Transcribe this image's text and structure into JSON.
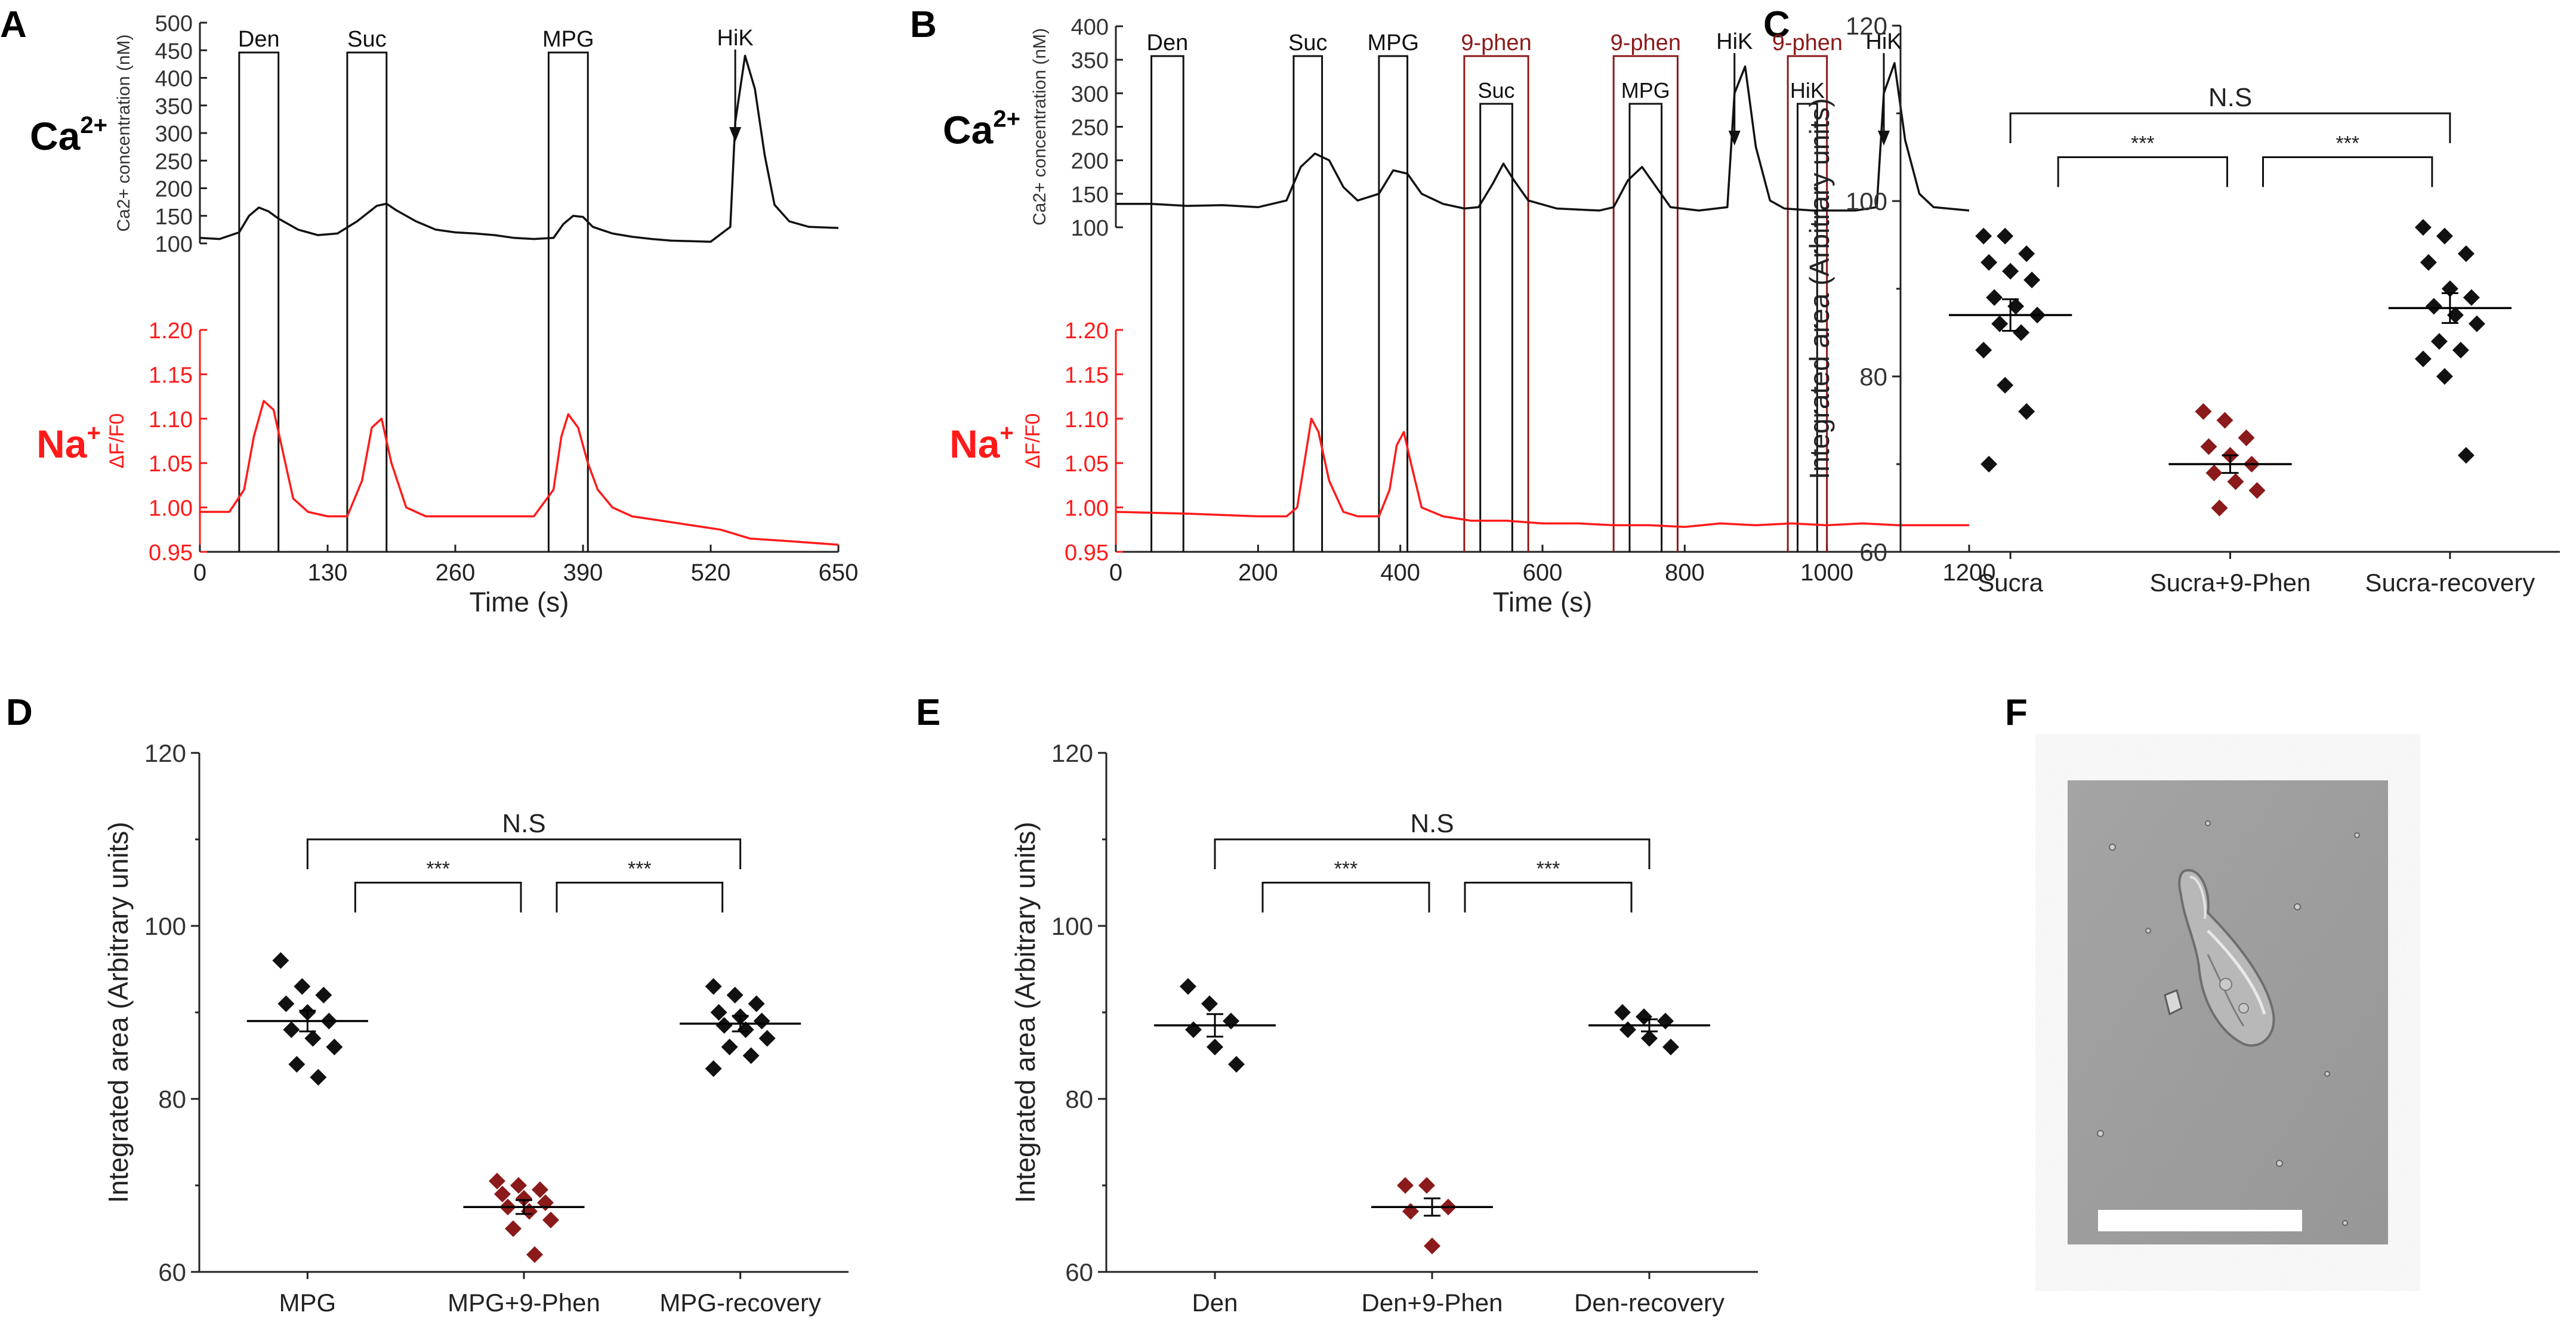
{
  "panel_letters": {
    "a": "A",
    "b": "B",
    "c": "C",
    "d": "D",
    "e": "E",
    "f": "F"
  },
  "colors": {
    "black": "#111111",
    "red": "#ff1a1a",
    "dark_red": "#8b1a1a",
    "axis": "#222222"
  },
  "chart_data": [
    {
      "id": "A",
      "type": "line",
      "xlabel": "Time (s)",
      "xticks": [
        "0",
        "130",
        "260",
        "390",
        "520",
        "650"
      ],
      "xlim": [
        0,
        650
      ],
      "series": [
        {
          "name": "Ca2+",
          "label_main": "Ca",
          "label_sup": "2+",
          "ylabel": "Ca2+ concentration (nM)",
          "yticks": [
            "100",
            "150",
            "200",
            "250",
            "300",
            "350",
            "400",
            "450",
            "500"
          ],
          "ylim": [
            100,
            500
          ],
          "x": [
            0,
            20,
            40,
            50,
            60,
            70,
            80,
            100,
            120,
            140,
            160,
            180,
            190,
            200,
            220,
            240,
            260,
            280,
            300,
            320,
            340,
            360,
            370,
            380,
            390,
            400,
            420,
            440,
            460,
            480,
            500,
            520,
            540,
            545,
            555,
            565,
            575,
            585,
            600,
            620,
            650
          ],
          "y": [
            110,
            108,
            120,
            150,
            165,
            158,
            145,
            125,
            115,
            118,
            140,
            168,
            172,
            160,
            140,
            125,
            120,
            118,
            115,
            110,
            108,
            110,
            135,
            150,
            148,
            130,
            118,
            112,
            108,
            105,
            104,
            103,
            130,
            320,
            440,
            380,
            260,
            170,
            140,
            130,
            128
          ]
        },
        {
          "name": "Na+",
          "label_main": "Na",
          "label_sup": "+",
          "ylabel": "ΔF/F0",
          "yticks": [
            "0.95",
            "1.00",
            "1.05",
            "1.10",
            "1.15",
            "1.20"
          ],
          "ylim": [
            0.95,
            1.2
          ],
          "x": [
            0,
            30,
            45,
            55,
            65,
            75,
            85,
            95,
            110,
            130,
            150,
            165,
            175,
            185,
            195,
            210,
            230,
            260,
            300,
            340,
            360,
            368,
            375,
            385,
            395,
            405,
            420,
            440,
            470,
            500,
            530,
            560,
            600,
            650
          ],
          "y": [
            0.995,
            0.995,
            1.02,
            1.08,
            1.12,
            1.11,
            1.06,
            1.01,
            0.995,
            0.99,
            0.99,
            1.03,
            1.09,
            1.1,
            1.05,
            1.0,
            0.99,
            0.99,
            0.99,
            0.99,
            1.02,
            1.08,
            1.105,
            1.09,
            1.05,
            1.02,
            1.0,
            0.99,
            0.985,
            0.98,
            0.975,
            0.965,
            0.962,
            0.958
          ]
        }
      ],
      "stimuli": [
        {
          "label": "Den",
          "start": 40,
          "end": 80
        },
        {
          "label": "Suc",
          "start": 150,
          "end": 190
        },
        {
          "label": "MPG",
          "start": 355,
          "end": 395
        }
      ],
      "annotations": [
        {
          "label": "HiK",
          "x": 545
        }
      ]
    },
    {
      "id": "B",
      "type": "line",
      "xlabel": "Time (s)",
      "xticks": [
        "0",
        "200",
        "400",
        "600",
        "800",
        "1000",
        "1200"
      ],
      "xlim": [
        0,
        1200
      ],
      "series": [
        {
          "name": "Ca2+",
          "label_main": "Ca",
          "label_sup": "2+",
          "ylabel": "Ca2+ concentration (nM)",
          "yticks": [
            "100",
            "150",
            "200",
            "250",
            "300",
            "350",
            "400"
          ],
          "ylim": [
            100,
            400
          ],
          "x": [
            0,
            50,
            100,
            150,
            200,
            240,
            260,
            280,
            300,
            320,
            340,
            370,
            390,
            410,
            430,
            460,
            490,
            510,
            530,
            545,
            560,
            580,
            620,
            680,
            700,
            720,
            740,
            760,
            780,
            820,
            860,
            870,
            885,
            900,
            920,
            940,
            980,
            1040,
            1070,
            1080,
            1095,
            1110,
            1130,
            1150,
            1200
          ],
          "y": [
            135,
            135,
            132,
            133,
            130,
            140,
            190,
            210,
            200,
            160,
            140,
            150,
            185,
            180,
            150,
            135,
            128,
            130,
            165,
            195,
            170,
            140,
            128,
            125,
            130,
            170,
            190,
            160,
            130,
            125,
            130,
            300,
            340,
            220,
            140,
            128,
            125,
            125,
            130,
            300,
            345,
            230,
            150,
            130,
            125
          ]
        },
        {
          "name": "Na+",
          "label_main": "Na",
          "label_sup": "+",
          "ylabel": "ΔF/F0",
          "yticks": [
            "0.95",
            "1.00",
            "1.05",
            "1.10",
            "1.15",
            "1.20"
          ],
          "ylim": [
            0.95,
            1.2
          ],
          "x": [
            0,
            100,
            200,
            240,
            255,
            265,
            275,
            285,
            300,
            320,
            340,
            370,
            385,
            395,
            405,
            415,
            430,
            460,
            500,
            550,
            600,
            650,
            700,
            750,
            800,
            850,
            900,
            950,
            1000,
            1050,
            1100,
            1150,
            1200
          ],
          "y": [
            0.995,
            0.993,
            0.99,
            0.99,
            1.0,
            1.05,
            1.1,
            1.085,
            1.03,
            0.995,
            0.99,
            0.99,
            1.02,
            1.07,
            1.085,
            1.05,
            1.0,
            0.99,
            0.985,
            0.985,
            0.982,
            0.982,
            0.98,
            0.98,
            0.978,
            0.982,
            0.98,
            0.982,
            0.98,
            0.982,
            0.98,
            0.98,
            0.98
          ]
        }
      ],
      "stimuli": [
        {
          "label": "Den",
          "start": 50,
          "end": 95
        },
        {
          "label": "Suc",
          "start": 250,
          "end": 290
        },
        {
          "label": "MPG",
          "start": 370,
          "end": 410
        }
      ],
      "inhibitor_boxes": [
        {
          "label": "9-phen",
          "inner": "Suc",
          "start": 490,
          "end": 580
        },
        {
          "label": "9-phen",
          "inner": "MPG",
          "start": 700,
          "end": 790
        },
        {
          "label": "9-phen",
          "inner": "HiK",
          "start": 945,
          "end": 1000
        }
      ],
      "annotations": [
        {
          "label": "HiK",
          "x": 870
        },
        {
          "label": "HiK",
          "x": 1080
        }
      ]
    },
    {
      "id": "C",
      "type": "scatter",
      "ylabel": "Integrated area (Arbitrary units)",
      "yticks": [
        "60",
        "80",
        "100",
        "120"
      ],
      "ylim": [
        60,
        120
      ],
      "categories": [
        "Sucra",
        "Sucra+9-Phen",
        "Sucra-recovery"
      ],
      "points": [
        [
          96,
          96,
          94,
          93,
          92,
          91,
          89,
          88,
          87,
          86,
          85,
          83,
          79,
          76,
          70
        ],
        [
          76,
          75,
          73,
          72,
          71,
          70,
          69,
          68,
          67,
          65
        ],
        [
          97,
          96,
          94,
          93,
          90,
          89,
          88,
          87,
          86,
          84,
          83,
          82,
          80,
          71
        ]
      ],
      "means": [
        87,
        70,
        87.8
      ],
      "sem": [
        1.8,
        1.0,
        1.7
      ],
      "brackets": [
        {
          "from": 0,
          "to": 2,
          "label": "N.S",
          "y": 110
        },
        {
          "from": 0,
          "to": 1,
          "label": "***",
          "y": 105
        },
        {
          "from": 1,
          "to": 2,
          "label": "***",
          "y": 105
        }
      ]
    },
    {
      "id": "D",
      "type": "scatter",
      "ylabel": "Integrated area (Arbitrary units)",
      "yticks": [
        "60",
        "80",
        "100",
        "120"
      ],
      "ylim": [
        60,
        120
      ],
      "categories": [
        "MPG",
        "MPG+9-Phen",
        "MPG-recovery"
      ],
      "points": [
        [
          96,
          93,
          92,
          91,
          90,
          89,
          88,
          87,
          86,
          84,
          82.5
        ],
        [
          70.5,
          70,
          69.5,
          69,
          68.5,
          68,
          67.5,
          67,
          66,
          65,
          62
        ],
        [
          93,
          92,
          91,
          90,
          89.5,
          89,
          88.5,
          88,
          87,
          86,
          85,
          83.5
        ]
      ],
      "means": [
        89,
        67.5,
        88.7
      ],
      "sem": [
        1.2,
        0.8,
        0.9
      ],
      "brackets": [
        {
          "from": 0,
          "to": 2,
          "label": "N.S",
          "y": 110
        },
        {
          "from": 0,
          "to": 1,
          "label": "***",
          "y": 105
        },
        {
          "from": 1,
          "to": 2,
          "label": "***",
          "y": 105
        }
      ]
    },
    {
      "id": "E",
      "type": "scatter",
      "ylabel": "Integrated area (Arbitrary units)",
      "yticks": [
        "60",
        "80",
        "100",
        "120"
      ],
      "ylim": [
        60,
        120
      ],
      "categories": [
        "Den",
        "Den+9-Phen",
        "Den-recovery"
      ],
      "points": [
        [
          93,
          91,
          89,
          88,
          86,
          84
        ],
        [
          70,
          70,
          67.5,
          67,
          63
        ],
        [
          90,
          89.5,
          89,
          88,
          87,
          86
        ]
      ],
      "means": [
        88.5,
        67.5,
        88.5
      ],
      "sem": [
        1.3,
        1.0,
        0.7
      ],
      "brackets": [
        {
          "from": 0,
          "to": 2,
          "label": "N.S",
          "y": 110
        },
        {
          "from": 0,
          "to": 1,
          "label": "***",
          "y": 105
        },
        {
          "from": 1,
          "to": 2,
          "label": "***",
          "y": 105
        }
      ]
    }
  ]
}
